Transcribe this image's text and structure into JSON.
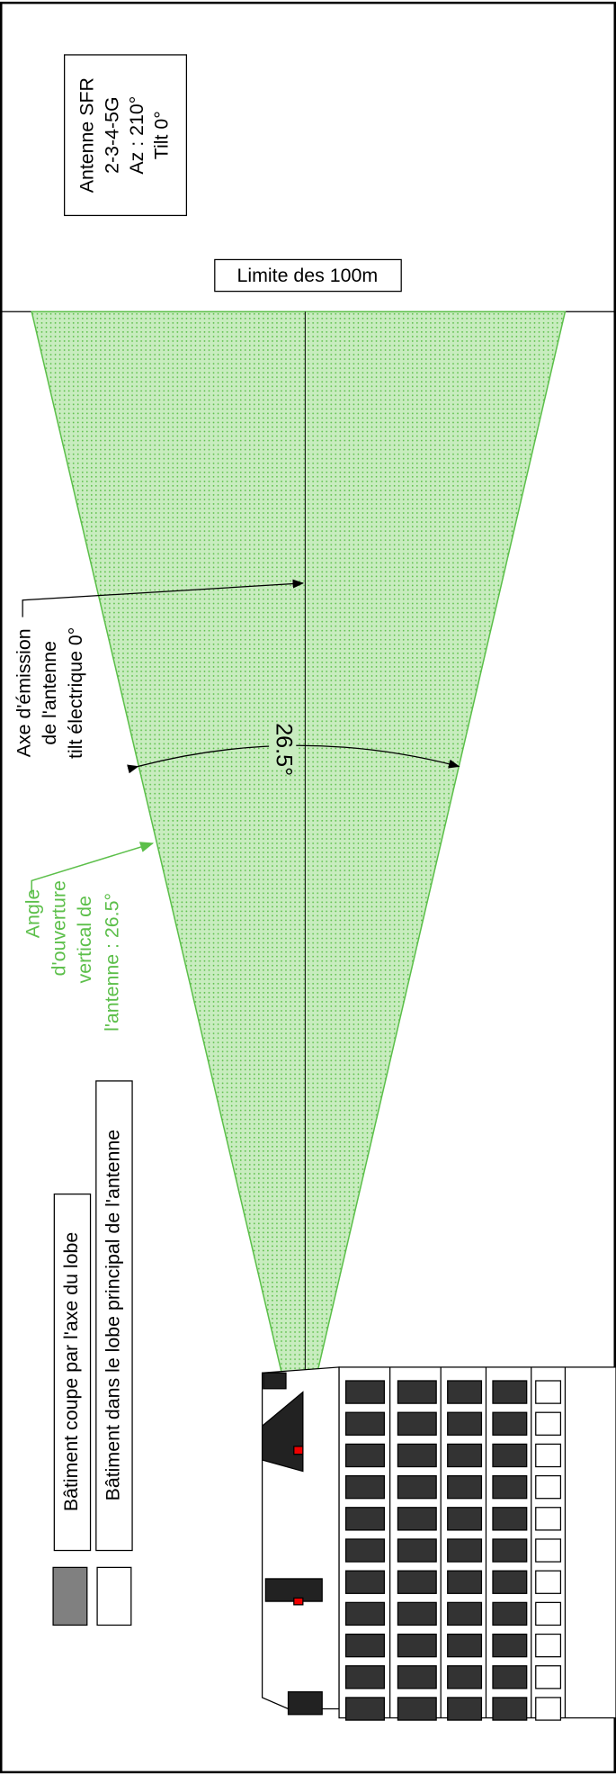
{
  "antenna_box": {
    "lines": [
      "Antenne SFR",
      "2-3-4-5G",
      "Az : 210°",
      "Tilt 0°"
    ]
  },
  "limit_label": "Limite des 100m",
  "axis_label": {
    "lines": [
      "Axe d'émission",
      "de l'antenne",
      "tilt électrique 0°"
    ]
  },
  "angle_value": "26.5°",
  "aperture_label": {
    "lines": [
      "Angle",
      "d'ouverture",
      "vertical de",
      "l'antenne : 26.5°"
    ]
  },
  "legend": {
    "items": [
      "Bâtiment coupe par l'axe du lobe",
      "Bâtiment dans le lobe principal de l'antenne"
    ]
  }
}
